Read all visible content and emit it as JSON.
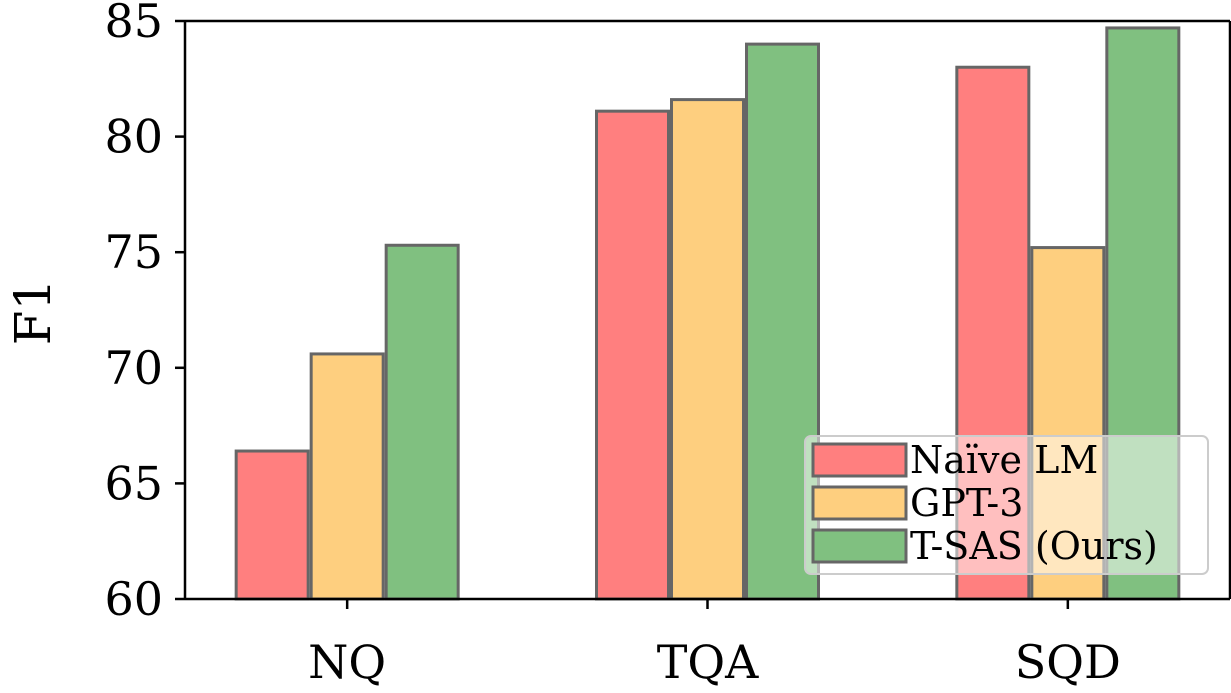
{
  "chart_data": {
    "type": "bar",
    "title": "",
    "xlabel": "",
    "ylabel": "F1",
    "ylim": [
      60,
      85
    ],
    "yticks": [
      60,
      65,
      70,
      75,
      80,
      85
    ],
    "categories": [
      "NQ",
      "TQA",
      "SQD"
    ],
    "series": [
      {
        "name": "Naïve LM",
        "color": "#ff7f7f",
        "values": [
          66.4,
          81.1,
          83.0
        ]
      },
      {
        "name": "GPT-3",
        "color": "#fecf7f",
        "values": [
          70.6,
          81.6,
          75.2
        ]
      },
      {
        "name": "T-SAS (Ours)",
        "color": "#80c080",
        "values": [
          75.3,
          84.0,
          84.7
        ]
      }
    ],
    "legend_position": "bottom-right",
    "grid": false
  }
}
